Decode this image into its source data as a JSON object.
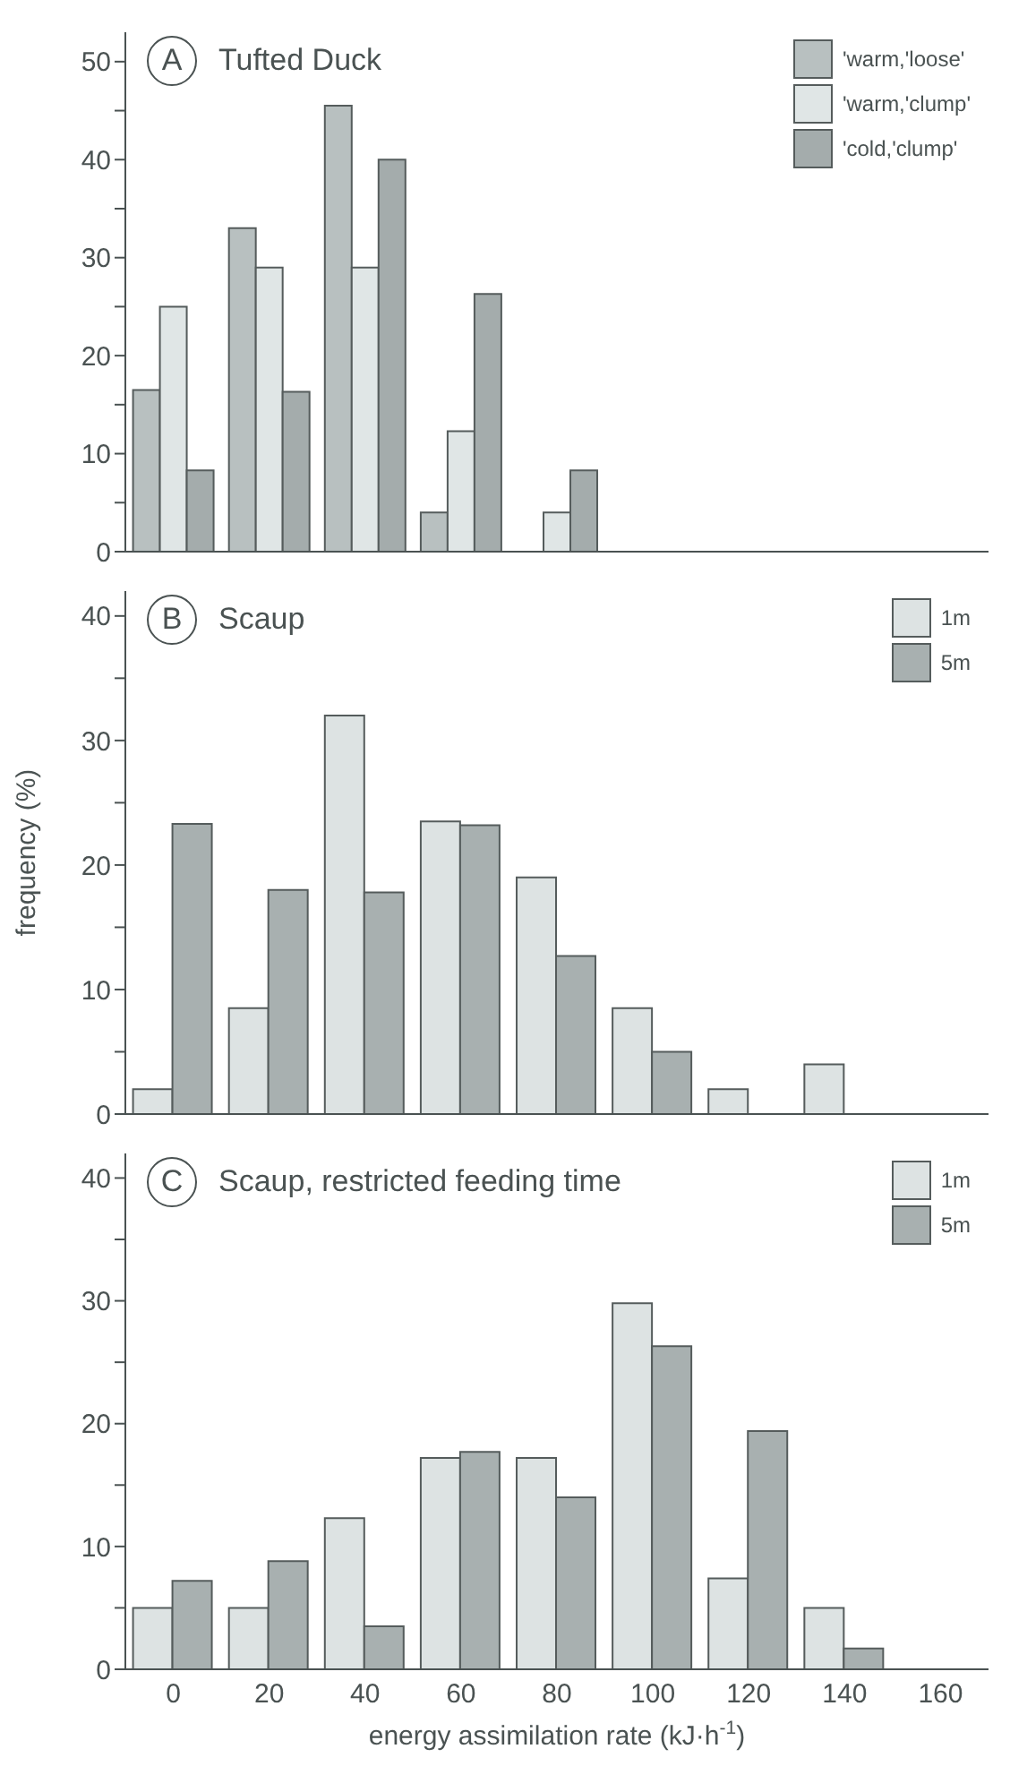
{
  "chart_data": [
    {
      "type": "bar",
      "title": "Tufted Duck",
      "annotations": [
        "A"
      ],
      "categories": [
        "0",
        "20",
        "40",
        "60",
        "80",
        "100",
        "120",
        "140",
        "160"
      ],
      "series": [
        {
          "name": "'warm,'loose'",
          "color": "#b8c0c0",
          "values": [
            16.5,
            33,
            45.5,
            4,
            null,
            null,
            null,
            null,
            null
          ]
        },
        {
          "name": "'warm,'clump'",
          "color": "#e0e6e6",
          "values": [
            25,
            29,
            29,
            12.3,
            4,
            null,
            null,
            null,
            null
          ]
        },
        {
          "name": "'cold,'clump'",
          "color": "#a4acac",
          "values": [
            8.3,
            16.3,
            40,
            26.3,
            8.3,
            null,
            null,
            null,
            null
          ]
        }
      ],
      "ylim": [
        0,
        53
      ],
      "yticks": [
        0,
        {
          "value": 5,
          "label": null
        },
        10,
        {
          "value": 15,
          "label": null
        },
        20,
        {
          "value": 25,
          "label": null
        },
        30,
        {
          "value": 35,
          "label": null
        },
        40,
        {
          "value": 45,
          "label": null
        },
        50
      ],
      "legend": "top right",
      "grid": false,
      "tick_labels": "y"
    },
    {
      "type": "bar",
      "title": "Scaup",
      "annotations": [
        "B"
      ],
      "ylabel": "frequency (%)",
      "categories": [
        "0",
        "20",
        "40",
        "60",
        "80",
        "100",
        "120",
        "140",
        "160"
      ],
      "series": [
        {
          "name": "1m",
          "color": "#dde3e3",
          "values": [
            2,
            8.5,
            32,
            23.5,
            19,
            8.5,
            2,
            4,
            null
          ]
        },
        {
          "name": "5m",
          "color": "#a8b0b0",
          "values": [
            23.3,
            18,
            17.8,
            23.2,
            12.7,
            5,
            null,
            null,
            null
          ]
        }
      ],
      "ylim": [
        0,
        42
      ],
      "yticks": [
        0,
        {
          "value": 5,
          "label": null
        },
        10,
        {
          "value": 15,
          "label": null
        },
        20,
        {
          "value": 25,
          "label": null
        },
        30,
        {
          "value": 35,
          "label": null
        },
        40
      ],
      "legend": "top right",
      "grid": false,
      "tick_labels": "y"
    },
    {
      "type": "bar",
      "title": "Scaup, restricted feeding time",
      "annotations": [
        "C"
      ],
      "xlabel": "energy assimilation rate (kJ·h$^{-1}$)",
      "categories": [
        "0",
        "20",
        "40",
        "60",
        "80",
        "100",
        "120",
        "140",
        "160"
      ],
      "series": [
        {
          "name": "1m",
          "color": "#dde3e3",
          "values": [
            5,
            5,
            12.3,
            17.2,
            17.2,
            29.8,
            7.4,
            5,
            null
          ]
        },
        {
          "name": "5m",
          "color": "#a8b0b0",
          "values": [
            7.2,
            8.8,
            3.5,
            17.7,
            14,
            26.3,
            19.4,
            1.7,
            null
          ]
        }
      ],
      "ylim": [
        0,
        42
      ],
      "yticks": [
        0,
        {
          "value": 5,
          "label": null
        },
        10,
        {
          "value": 15,
          "label": null
        },
        20,
        {
          "value": 25,
          "label": null
        },
        30,
        {
          "value": 35,
          "label": null
        },
        40
      ],
      "legend": "top right",
      "grid": false
    }
  ]
}
